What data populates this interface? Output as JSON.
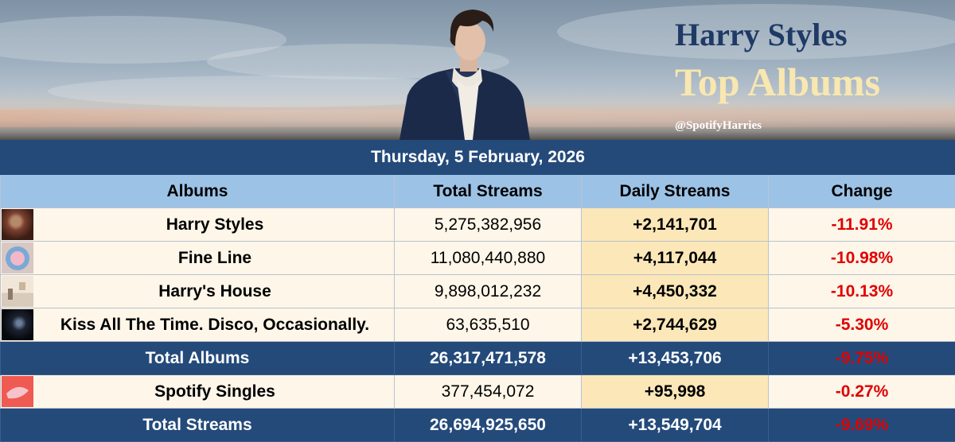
{
  "header": {
    "artist": "Harry Styles",
    "subtitle": "Top Albums",
    "handle": "@SpotifyHarries"
  },
  "date": "Thursday, 5 February, 2026",
  "columns": [
    "Albums",
    "Total Streams",
    "Daily Streams",
    "Change"
  ],
  "albums": [
    {
      "name": "Harry Styles",
      "total": "5,275,382,956",
      "daily": "+2,141,701",
      "change": "-11.91%",
      "cover_icon": "harry-styles-cover-icon"
    },
    {
      "name": "Fine Line",
      "total": "11,080,440,880",
      "daily": "+4,117,044",
      "change": "-10.98%",
      "cover_icon": "fine-line-cover-icon"
    },
    {
      "name": "Harry's House",
      "total": "9,898,012,232",
      "daily": "+4,450,332",
      "change": "-10.13%",
      "cover_icon": "harrys-house-cover-icon"
    },
    {
      "name": "Kiss All The Time. Disco, Occasionally.",
      "total": "63,635,510",
      "daily": "+2,744,629",
      "change": "-5.30%",
      "cover_icon": "kiss-all-the-time-cover-icon"
    }
  ],
  "total_albums": {
    "label": "Total Albums",
    "total": "26,317,471,578",
    "daily": "+13,453,706",
    "change": "-9.75%"
  },
  "singles": {
    "name": "Spotify Singles",
    "total": "377,454,072",
    "daily": "+95,998",
    "change": "-0.27%",
    "cover_icon": "singles-cover-icon"
  },
  "total_streams": {
    "label": "Total Streams",
    "total": "26,694,925,650",
    "daily": "+13,549,704",
    "change": "-9.69%"
  },
  "colors": {
    "header_navy": "#244a7a",
    "column_header_blue": "#9cc2e6",
    "row_cream": "#fdf6e9",
    "daily_highlight": "#fbe7b8",
    "negative_red": "#e00000",
    "title_navy": "#1f3a66",
    "title_cream": "#f8e7b0"
  }
}
